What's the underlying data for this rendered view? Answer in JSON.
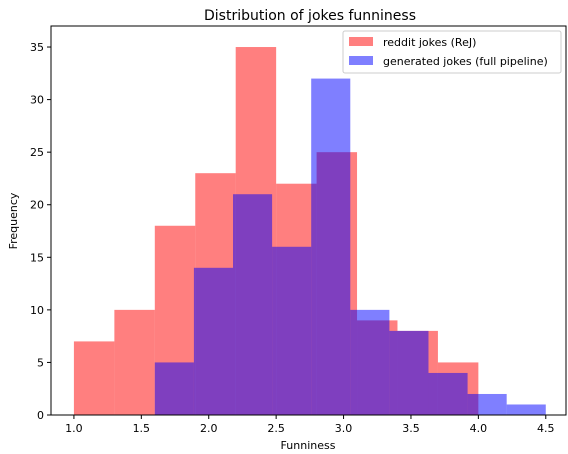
{
  "chart_data": {
    "type": "bar",
    "title": "Distribution of jokes funniness",
    "xlabel": "Funniness",
    "ylabel": "Frequency",
    "xlim": [
      0.83,
      4.65
    ],
    "ylim": [
      0,
      37
    ],
    "xticks": [
      1.0,
      1.5,
      2.0,
      2.5,
      3.0,
      3.5,
      4.0,
      4.5
    ],
    "xtick_labels": [
      "1.0",
      "1.5",
      "2.0",
      "2.5",
      "3.0",
      "3.5",
      "4.0",
      "4.5"
    ],
    "yticks": [
      0,
      5,
      10,
      15,
      20,
      25,
      30,
      35
    ],
    "ytick_labels": [
      "0",
      "5",
      "10",
      "15",
      "20",
      "25",
      "30",
      "35"
    ],
    "legend_position": "top-right",
    "series": [
      {
        "name": "reddit jokes (ReJ)",
        "color": "#ff0000",
        "alpha": 0.5,
        "bin_edges": [
          1.0,
          1.3,
          1.6,
          1.9,
          2.2,
          2.5,
          2.8,
          3.1,
          3.4,
          3.7,
          4.0
        ],
        "counts": [
          7,
          10,
          18,
          23,
          35,
          22,
          25,
          9,
          8,
          5
        ]
      },
      {
        "name": "generated jokes (full pipeline)",
        "color": "#0000ff",
        "alpha": 0.5,
        "bin_edges": [
          1.6,
          1.89,
          2.18,
          2.47,
          2.76,
          3.05,
          3.34,
          3.63,
          3.92,
          4.21,
          4.5
        ],
        "counts": [
          5,
          14,
          21,
          16,
          32,
          10,
          8,
          4,
          2,
          1
        ]
      }
    ]
  }
}
